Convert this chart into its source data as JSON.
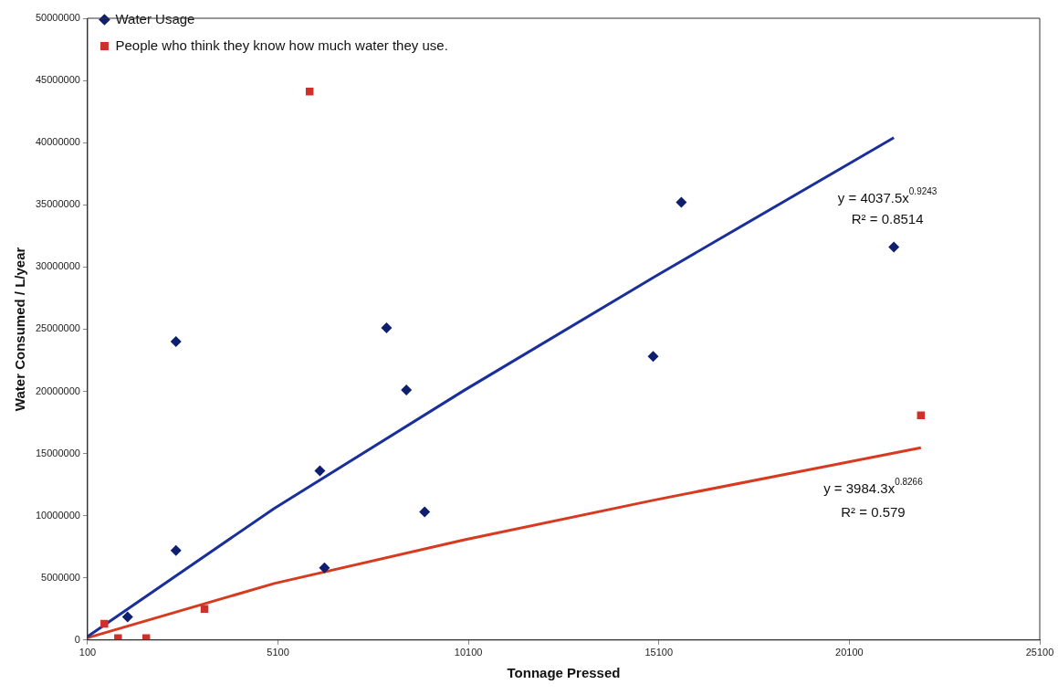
{
  "chart_data": {
    "type": "scatter",
    "xlabel": "Tonnage Pressed",
    "ylabel": "Water Consumed / L/year",
    "xlim": [
      100,
      25100
    ],
    "xticks": [
      100,
      5100,
      10100,
      15100,
      20100,
      25100
    ],
    "ylim": [
      0,
      50000000
    ],
    "yticks": [
      0,
      5000000,
      10000000,
      15000000,
      20000000,
      25000000,
      30000000,
      35000000,
      40000000,
      45000000,
      50000000
    ],
    "grid": false,
    "legend": "top left",
    "series": [
      {
        "name": "Water Usage",
        "type": "scatter",
        "marker": "diamond",
        "color": "#0d1f6e",
        "x": [
          1150,
          2420,
          2420,
          6200,
          6320,
          7950,
          8470,
          8950,
          14950,
          15690,
          21270
        ],
        "values": [
          1850000,
          24000000,
          7200000,
          13600000,
          5800000,
          25100000,
          20100000,
          10300000,
          22800000,
          35200000,
          31600000
        ]
      },
      {
        "name": "People who think they know how much water they use.",
        "type": "scatter",
        "marker": "square",
        "color": "#d0302a",
        "x": [
          540,
          900,
          1640,
          3170,
          5930,
          21980
        ],
        "values": [
          1300000,
          150000,
          150000,
          2500000,
          44100000,
          18070000
        ]
      },
      {
        "type": "line",
        "marker": "none",
        "color": "#1a2f9a",
        "x": [
          100,
          5000,
          10000,
          15000,
          21270
        ],
        "values": [
          285000,
          10580000,
          20100000,
          29240000,
          40400000
        ]
      },
      {
        "type": "line",
        "marker": "none",
        "color": "#d83a20",
        "x": [
          100,
          5000,
          10000,
          15000,
          21980
        ],
        "values": [
          180000,
          4550000,
          8060000,
          11270000,
          15460000
        ]
      }
    ],
    "annotations": [
      "y = 4037.5x$^{0.9243}$",
      "R² = 0.8514",
      "y = 3984.3x$^{0.8266}$",
      "R² = 0.579"
    ]
  }
}
